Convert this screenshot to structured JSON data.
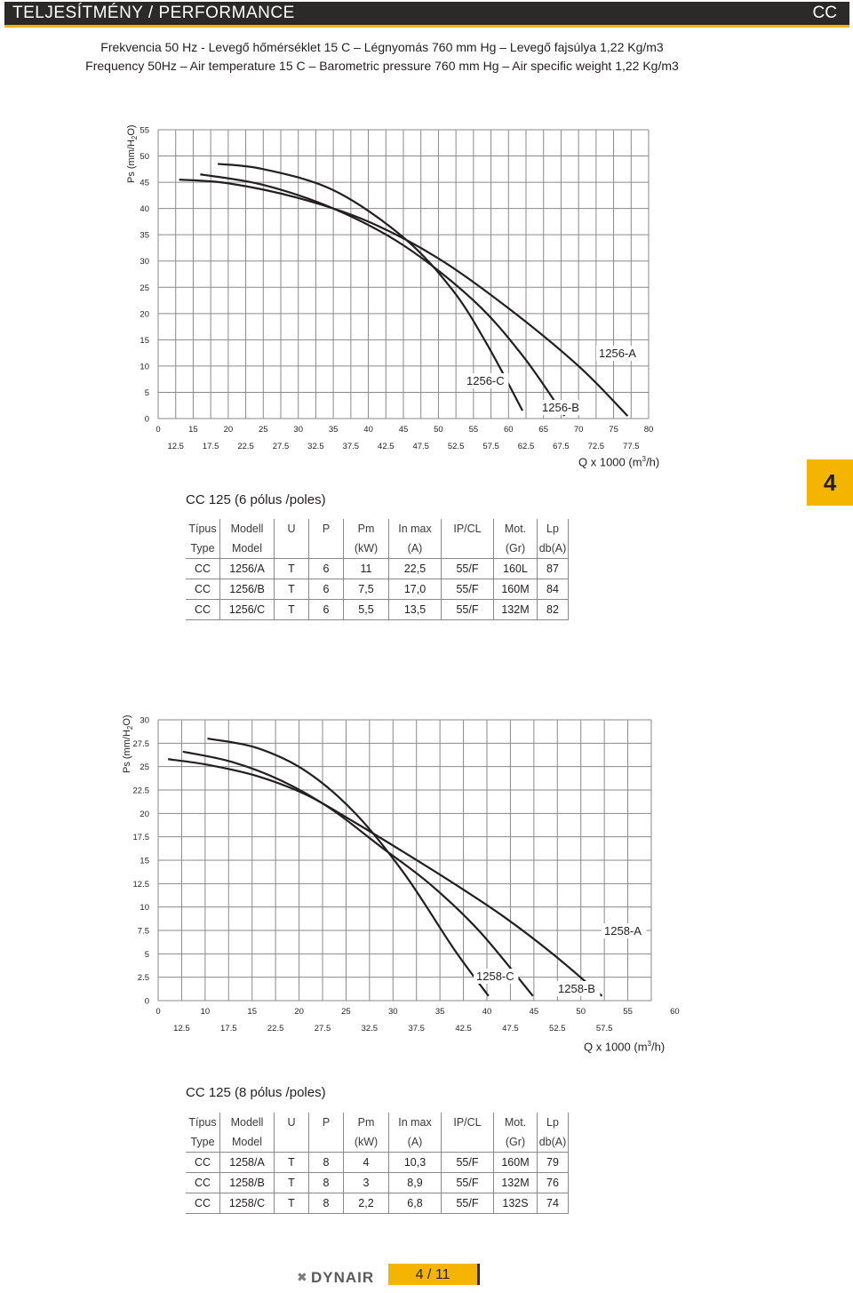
{
  "header": {
    "title": "TELJESÍTMÉNY / PERFORMANCE",
    "code": "CC"
  },
  "conditions": {
    "line1": "Frekvencia 50 Hz - Levegő hőmérséklet 15 C – Légnyomás 760 mm Hg –  Levegő fajsúlya 1,22 Kg/m3",
    "line2": "Frequency 50Hz – Air temperature 15 C – Barometric pressure 760 mm Hg – Air specific weight 1,22 Kg/m3"
  },
  "page_tab": "4",
  "chart_data": [
    {
      "type": "line",
      "ylabel": "Ps (mm/H",
      "ylabel_sub": "2",
      "ylabel_end": "O)",
      "xlabel": "Q x 1000 (m",
      "xlabel_sup": "3",
      "xlabel_end": "/h)",
      "xlim": [
        10,
        80
      ],
      "ylim": [
        0,
        55
      ],
      "x_ticks_major": [
        "0",
        "15",
        "20",
        "25",
        "30",
        "35",
        "40",
        "45",
        "50",
        "55",
        "60",
        "65",
        "70",
        "75",
        "80"
      ],
      "x_ticks_minor": [
        "12.5",
        "17.5",
        "22.5",
        "27.5",
        "32.5",
        "37.5",
        "42.5",
        "47.5",
        "52.5",
        "57.5",
        "62.5",
        "67.5",
        "72.5",
        "77.5"
      ],
      "y_ticks": [
        "0",
        "5",
        "10",
        "15",
        "20",
        "25",
        "30",
        "35",
        "40",
        "45",
        "50",
        "55"
      ],
      "grid": true,
      "series": [
        {
          "name": "1256-A",
          "x": [
            13,
            20,
            30,
            40,
            50,
            60,
            70,
            77
          ],
          "y": [
            45.5,
            44.8,
            42,
            37.5,
            30.5,
            21,
            10,
            0.5
          ]
        },
        {
          "name": "1256-B",
          "x": [
            16,
            25,
            35,
            45,
            55,
            62,
            68
          ],
          "y": [
            46.5,
            44.5,
            40,
            33,
            22.5,
            12,
            0.5
          ]
        },
        {
          "name": "1256-C",
          "x": [
            18.5,
            25,
            35,
            45,
            52,
            57,
            62
          ],
          "y": [
            48.5,
            47.5,
            43.5,
            34.5,
            24.5,
            14,
            1.5
          ]
        }
      ]
    },
    {
      "type": "line",
      "ylabel": "Ps  (mm/H",
      "ylabel_sub": "2",
      "ylabel_end": "O)",
      "xlabel": "Q x 1000 (m",
      "xlabel_sup": "3",
      "xlabel_end": "/h)",
      "xlim": [
        10,
        60
      ],
      "ylim": [
        0,
        30
      ],
      "x_ticks_major": [
        "0",
        "10",
        "15",
        "20",
        "25",
        "30",
        "35",
        "40",
        "45",
        "50",
        "55",
        "60"
      ],
      "x_ticks_minor": [
        "12.5",
        "17.5",
        "22.5",
        "27.5",
        "32.5",
        "37.5",
        "42.5",
        "47.5",
        "52.5",
        "57.5"
      ],
      "y_ticks": [
        "0",
        "2.5",
        "5",
        "7.5",
        "10",
        "12.5",
        "15",
        "17.5",
        "20",
        "22.5",
        "25",
        "27.5",
        "30"
      ],
      "grid": true,
      "series": [
        {
          "name": "1258-A",
          "x": [
            11,
            15,
            20,
            25,
            30,
            35,
            40,
            45,
            50,
            55
          ],
          "y": [
            25.8,
            25.2,
            24,
            22,
            19,
            15.8,
            12.5,
            9,
            5,
            0.5
          ]
        },
        {
          "name": "1258-B",
          "x": [
            12.5,
            17.5,
            22.5,
            27.5,
            32.5,
            37.5,
            42.5,
            48
          ],
          "y": [
            26.6,
            25.5,
            23.5,
            20.5,
            16.5,
            12.5,
            7.5,
            0.5
          ]
        },
        {
          "name": "1258-C",
          "x": [
            15,
            20,
            25,
            30,
            35,
            40,
            43.5
          ],
          "y": [
            28,
            27,
            24.5,
            20,
            13.5,
            5.5,
            0.5
          ]
        }
      ]
    }
  ],
  "tables": [
    {
      "title": "CC 125 (6 pólus /poles)",
      "header1": [
        "Típus",
        "Modell",
        "U",
        "P",
        "Pm",
        "In max",
        "IP/CL",
        "Mot.",
        "Lp"
      ],
      "header2": [
        "Type",
        "Model",
        "",
        "",
        "(kW)",
        "(A)",
        "",
        "(Gr)",
        "db(A)"
      ],
      "rows": [
        [
          "CC",
          "1256/A",
          "T",
          "6",
          "11",
          "22,5",
          "55/F",
          "160L",
          "87"
        ],
        [
          "CC",
          "1256/B",
          "T",
          "6",
          "7,5",
          "17,0",
          "55/F",
          "160M",
          "84"
        ],
        [
          "CC",
          "1256/C",
          "T",
          "6",
          "5,5",
          "13,5",
          "55/F",
          "132M",
          "82"
        ]
      ]
    },
    {
      "title": "CC 125 (8 pólus /poles)",
      "header1": [
        "Típus",
        "Modell",
        "U",
        "P",
        "Pm",
        "In max",
        "IP/CL",
        "Mot.",
        "Lp"
      ],
      "header2": [
        "Type",
        "Model",
        "",
        "",
        "(kW)",
        "(A)",
        "",
        "(Gr)",
        "db(A)"
      ],
      "rows": [
        [
          "CC",
          "1258/A",
          "T",
          "8",
          "4",
          "10,3",
          "55/F",
          "160M",
          "79"
        ],
        [
          "CC",
          "1258/B",
          "T",
          "8",
          "3",
          "8,9",
          "55/F",
          "132M",
          "76"
        ],
        [
          "CC",
          "1258/C",
          "T",
          "8",
          "2,2",
          "6,8",
          "55/F",
          "132S",
          "74"
        ]
      ]
    }
  ],
  "footer": {
    "brand": "DYNAIR",
    "logo_icon": "dynair-x-icon",
    "page": "4 / 11"
  },
  "colors": {
    "accent": "#f5b400",
    "header_bg": "#2b2a29",
    "grid": "#8a8a8a",
    "curve": "#231f20"
  }
}
